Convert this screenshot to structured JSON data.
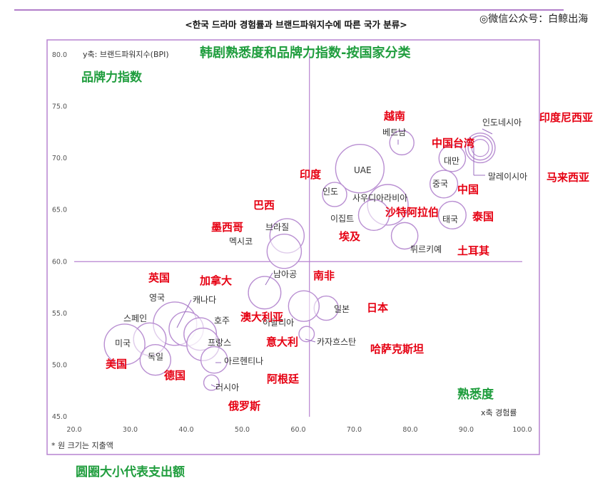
{
  "header": {
    "title": "<한국 드라마 경험률과 브랜드파워지수에 따른 국가 분류>",
    "watermark": "◎微信公众号：白鲸出海"
  },
  "chart_data": {
    "type": "scatter",
    "bubble": true,
    "title": "韩剧熟悉度和品牌力指数-按国家分类",
    "y_axis_label": "y축: 브랜드파워지수(BPI)",
    "y_axis_label_zh": "品牌力指数",
    "x_axis_label": "x축 경험률",
    "x_axis_label_zh": "熟悉度",
    "size_note": "* 원 크기는 지출액",
    "size_note_zh": "圆圈大小代表支出额",
    "xlim": [
      20,
      100
    ],
    "ylim": [
      45,
      80
    ],
    "x_ticks": [
      "20.0",
      "30.0",
      "40.0",
      "50.0",
      "60.0",
      "70.0",
      "80.0",
      "90.0",
      "100.0"
    ],
    "y_ticks": [
      "80.0",
      "75.0",
      "70.0",
      "65.0",
      "60.0",
      "55.0",
      "50.0",
      "45.0"
    ],
    "quadrant_divider": {
      "x": 62,
      "y": 60
    },
    "points": [
      {
        "ko": "인도네시아",
        "zh": "印度尼西亚",
        "x": 92.5,
        "y": 71.0,
        "size": 1.5
      },
      {
        "ko": "베트남",
        "zh": "越南",
        "x": 78.5,
        "y": 71.5,
        "size": 1.0
      },
      {
        "ko": "대만",
        "zh": "中国台湾",
        "x": 87.5,
        "y": 70.0,
        "size": 1.2
      },
      {
        "ko": "UAE",
        "zh": "",
        "x": 71.0,
        "y": 69.0,
        "size": 4.0
      },
      {
        "ko": "말레이시아",
        "zh": "马来西亚",
        "x": 92.5,
        "y": 71.0,
        "size": 1.0
      },
      {
        "ko": "중국",
        "zh": "中国",
        "x": 86.0,
        "y": 67.5,
        "size": 1.3
      },
      {
        "ko": "인도",
        "zh": "印度",
        "x": 66.5,
        "y": 66.5,
        "size": 1.0
      },
      {
        "ko": "사우디아라비아",
        "zh": "沙特阿拉伯",
        "x": 76.0,
        "y": 65.5,
        "size": 2.8
      },
      {
        "ko": "이집트",
        "zh": "埃及",
        "x": 73.5,
        "y": 64.5,
        "size": 1.6
      },
      {
        "ko": "태국",
        "zh": "泰国",
        "x": 87.5,
        "y": 64.5,
        "size": 1.3
      },
      {
        "ko": "튀르키예",
        "zh": "土耳其",
        "x": 79.0,
        "y": 62.5,
        "size": 1.2
      },
      {
        "ko": "브라질",
        "zh": "巴西",
        "x": 58.0,
        "y": 62.5,
        "size": 2.0
      },
      {
        "ko": "멕시코",
        "zh": "墨西哥",
        "x": 57.5,
        "y": 61.0,
        "size": 2.0
      },
      {
        "ko": "남아공",
        "zh": "南非",
        "x": 54.0,
        "y": 57.0,
        "size": 1.8
      },
      {
        "ko": "영국",
        "zh": "英国",
        "x": 38.0,
        "y": 54.0,
        "size": 3.2
      },
      {
        "ko": "캐나다",
        "zh": "加拿大",
        "x": 40.0,
        "y": 53.5,
        "size": 2.0
      },
      {
        "ko": "일본",
        "zh": "日本",
        "x": 65.0,
        "y": 55.5,
        "size": 1.0
      },
      {
        "ko": "이탈리아",
        "zh": "意大利",
        "x": 61.0,
        "y": 55.7,
        "size": 1.6
      },
      {
        "ko": "호주",
        "zh": "澳大利亚",
        "x": 42.5,
        "y": 53.0,
        "size": 1.8
      },
      {
        "ko": "스페인",
        "zh": "",
        "x": 33.5,
        "y": 52.5,
        "size": 1.8
      },
      {
        "ko": "미국",
        "zh": "美国",
        "x": 29.0,
        "y": 52.0,
        "size": 2.8
      },
      {
        "ko": "프랑스",
        "zh": "",
        "x": 43.0,
        "y": 52.0,
        "size": 1.8
      },
      {
        "ko": "카자흐스탄",
        "zh": "哈萨克斯坦",
        "x": 61.5,
        "y": 53.0,
        "size": 0.4
      },
      {
        "ko": "독일",
        "zh": "德国",
        "x": 34.5,
        "y": 50.5,
        "size": 1.6
      },
      {
        "ko": "아르헨티나",
        "zh": "阿根廷",
        "x": 45.0,
        "y": 50.5,
        "size": 1.2
      },
      {
        "ko": "러시아",
        "zh": "俄罗斯",
        "x": 44.5,
        "y": 48.3,
        "size": 0.4
      }
    ]
  }
}
